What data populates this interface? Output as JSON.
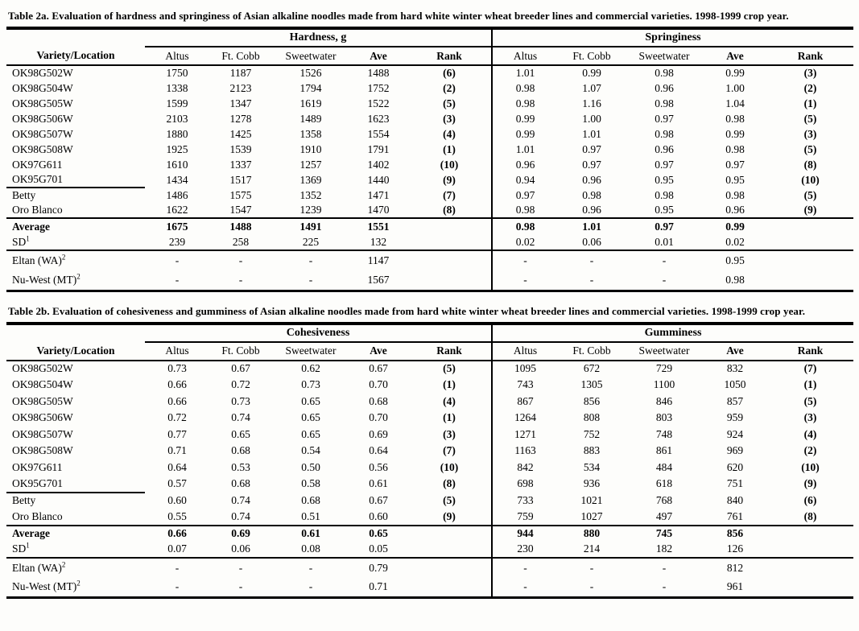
{
  "document": {
    "kind": "scanned-report-tables",
    "ink_color": "#000000",
    "paper_color": "#fdfdfb"
  },
  "tables": [
    {
      "name": "Table 2a",
      "title": "Table 2a.  Evaluation of  hardness and springiness of Asian alkaline noodles made from hard white winter wheat breeder lines and commercial varieties.  1998-1999 crop year.",
      "group_left": "Hardness, g",
      "group_right": "Springiness",
      "row_header": "Variety/Location",
      "columns": [
        "Altus",
        "Ft. Cobb",
        "Sweetwater",
        "Ave",
        "Rank"
      ],
      "rows": [
        {
          "label": "OK98G502W",
          "left": [
            "1750",
            "1187",
            "1526",
            "1488",
            "(6)"
          ],
          "right": [
            "1.01",
            "0.99",
            "0.98",
            "0.99",
            "(3)"
          ]
        },
        {
          "label": "OK98G504W",
          "left": [
            "1338",
            "2123",
            "1794",
            "1752",
            "(2)"
          ],
          "right": [
            "0.98",
            "1.07",
            "0.96",
            "1.00",
            "(2)"
          ]
        },
        {
          "label": "OK98G505W",
          "left": [
            "1599",
            "1347",
            "1619",
            "1522",
            "(5)"
          ],
          "right": [
            "0.98",
            "1.16",
            "0.98",
            "1.04",
            "(1)"
          ]
        },
        {
          "label": "OK98G506W",
          "left": [
            "2103",
            "1278",
            "1489",
            "1623",
            "(3)"
          ],
          "right": [
            "0.99",
            "1.00",
            "0.97",
            "0.98",
            "(5)"
          ]
        },
        {
          "label": "OK98G507W",
          "left": [
            "1880",
            "1425",
            "1358",
            "1554",
            "(4)"
          ],
          "right": [
            "0.99",
            "1.01",
            "0.98",
            "0.99",
            "(3)"
          ]
        },
        {
          "label": "OK98G508W",
          "left": [
            "1925",
            "1539",
            "1910",
            "1791",
            "(1)"
          ],
          "right": [
            "1.01",
            "0.97",
            "0.96",
            "0.98",
            "(5)"
          ]
        },
        {
          "label": "OK97G611",
          "left": [
            "1610",
            "1337",
            "1257",
            "1402",
            "(10)"
          ],
          "right": [
            "0.96",
            "0.97",
            "0.97",
            "0.97",
            "(8)"
          ]
        },
        {
          "label": "OK95G701",
          "left": [
            "1434",
            "1517",
            "1369",
            "1440",
            "(9)"
          ],
          "right": [
            "0.94",
            "0.96",
            "0.95",
            "0.95",
            "(10)"
          ]
        },
        {
          "label": "Betty",
          "left": [
            "1486",
            "1575",
            "1352",
            "1471",
            "(7)"
          ],
          "right": [
            "0.97",
            "0.98",
            "0.98",
            "0.98",
            "(5)"
          ]
        },
        {
          "label": "Oro Blanco",
          "left": [
            "1622",
            "1547",
            "1239",
            "1470",
            "(8)"
          ],
          "right": [
            "0.98",
            "0.96",
            "0.95",
            "0.96",
            "(9)"
          ]
        }
      ],
      "summary_rows": [
        {
          "label": "Average",
          "bold": true,
          "left": [
            "1675",
            "1488",
            "1491",
            "1551",
            ""
          ],
          "right": [
            "0.98",
            "1.01",
            "0.97",
            "0.99",
            ""
          ]
        },
        {
          "label": "SD",
          "sup": "1",
          "left": [
            "239",
            "258",
            "225",
            "132",
            ""
          ],
          "right": [
            "0.02",
            "0.06",
            "0.01",
            "0.02",
            ""
          ]
        }
      ],
      "check_rows": [
        {
          "label": "Eltan (WA)",
          "sup": "2",
          "left": [
            "-",
            "-",
            "-",
            "1147",
            ""
          ],
          "right": [
            "-",
            "-",
            "-",
            "0.95",
            ""
          ]
        },
        {
          "label": "Nu-West (MT)",
          "sup": "2",
          "left": [
            "-",
            "-",
            "-",
            "1567",
            ""
          ],
          "right": [
            "-",
            "-",
            "-",
            "0.98",
            ""
          ]
        }
      ]
    },
    {
      "name": "Table 2b",
      "title": "Table 2b. Evaluation of cohesiveness and gumminess of Asian alkaline noodles made from hard white winter wheat breeder lines and commercial varieties. 1998-1999 crop year.",
      "group_left": "Cohesiveness",
      "group_right": "Gumminess",
      "row_header": "Variety/Location",
      "columns": [
        "Altus",
        "Ft. Cobb",
        "Sweetwater",
        "Ave",
        "Rank"
      ],
      "rows": [
        {
          "label": "OK98G502W",
          "left": [
            "0.73",
            "0.67",
            "0.62",
            "0.67",
            "(5)"
          ],
          "right": [
            "1095",
            "672",
            "729",
            "832",
            "(7)"
          ]
        },
        {
          "label": "OK98G504W",
          "left": [
            "0.66",
            "0.72",
            "0.73",
            "0.70",
            "(1)"
          ],
          "right": [
            "743",
            "1305",
            "1100",
            "1050",
            "(1)"
          ]
        },
        {
          "label": "OK98G505W",
          "left": [
            "0.66",
            "0.73",
            "0.65",
            "0.68",
            "(4)"
          ],
          "right": [
            "867",
            "856",
            "846",
            "857",
            "(5)"
          ]
        },
        {
          "label": "OK98G506W",
          "left": [
            "0.72",
            "0.74",
            "0.65",
            "0.70",
            "(1)"
          ],
          "right": [
            "1264",
            "808",
            "803",
            "959",
            "(3)"
          ]
        },
        {
          "label": "OK98G507W",
          "left": [
            "0.77",
            "0.65",
            "0.65",
            "0.69",
            "(3)"
          ],
          "right": [
            "1271",
            "752",
            "748",
            "924",
            "(4)"
          ]
        },
        {
          "label": "OK98G508W",
          "left": [
            "0.71",
            "0.68",
            "0.54",
            "0.64",
            "(7)"
          ],
          "right": [
            "1163",
            "883",
            "861",
            "969",
            "(2)"
          ]
        },
        {
          "label": "OK97G611",
          "left": [
            "0.64",
            "0.53",
            "0.50",
            "0.56",
            "(10)"
          ],
          "right": [
            "842",
            "534",
            "484",
            "620",
            "(10)"
          ]
        },
        {
          "label": "OK95G701",
          "left": [
            "0.57",
            "0.68",
            "0.58",
            "0.61",
            "(8)"
          ],
          "right": [
            "698",
            "936",
            "618",
            "751",
            "(9)"
          ]
        },
        {
          "label": "Betty",
          "left": [
            "0.60",
            "0.74",
            "0.68",
            "0.67",
            "(5)"
          ],
          "right": [
            "733",
            "1021",
            "768",
            "840",
            "(6)"
          ]
        },
        {
          "label": "Oro Blanco",
          "left": [
            "0.55",
            "0.74",
            "0.51",
            "0.60",
            "(9)"
          ],
          "right": [
            "759",
            "1027",
            "497",
            "761",
            "(8)"
          ]
        }
      ],
      "summary_rows": [
        {
          "label": "Average",
          "bold": true,
          "left": [
            "0.66",
            "0.69",
            "0.61",
            "0.65",
            ""
          ],
          "right": [
            "944",
            "880",
            "745",
            "856",
            ""
          ]
        },
        {
          "label": "SD",
          "sup": "1",
          "left": [
            "0.07",
            "0.06",
            "0.08",
            "0.05",
            ""
          ],
          "right": [
            "230",
            "214",
            "182",
            "126",
            ""
          ]
        }
      ],
      "check_rows": [
        {
          "label": "Eltan (WA)",
          "sup": "2",
          "left": [
            "-",
            "-",
            "-",
            "0.79",
            ""
          ],
          "right": [
            "-",
            "-",
            "-",
            "812",
            ""
          ]
        },
        {
          "label": "Nu-West (MT)",
          "sup": "2",
          "left": [
            "-",
            "-",
            "-",
            "0.71",
            ""
          ],
          "right": [
            "-",
            "-",
            "-",
            "961",
            ""
          ]
        }
      ]
    }
  ]
}
